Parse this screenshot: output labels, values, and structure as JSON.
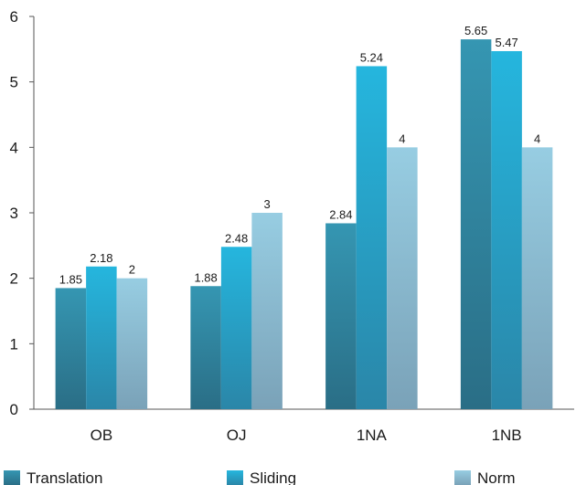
{
  "chart_data": {
    "type": "bar",
    "categories": [
      "OB",
      "OJ",
      "1NA",
      "1NB"
    ],
    "series": [
      {
        "name": "Translation",
        "values": [
          1.85,
          1.88,
          2.84,
          5.65
        ],
        "labels": [
          "1.85",
          "1.88",
          "2.84",
          "5.65"
        ],
        "color": "#2f8aa6"
      },
      {
        "name": "Sliding",
        "values": [
          2.18,
          2.48,
          5.24,
          5.47
        ],
        "labels": [
          "2.18",
          "2.48",
          "5.24",
          "5.47"
        ],
        "color": "#25b0d8"
      },
      {
        "name": "Norm",
        "values": [
          2,
          3,
          4,
          4
        ],
        "labels": [
          "2",
          "3",
          "4",
          "4"
        ],
        "color": "#8ec6dc"
      }
    ],
    "yticks": [
      "0",
      "1",
      "2",
      "3",
      "4",
      "5",
      "6"
    ],
    "ylim": [
      0,
      6
    ],
    "grid": false,
    "legend_position": "bottom",
    "title": "",
    "xlabel": "",
    "ylabel": ""
  }
}
